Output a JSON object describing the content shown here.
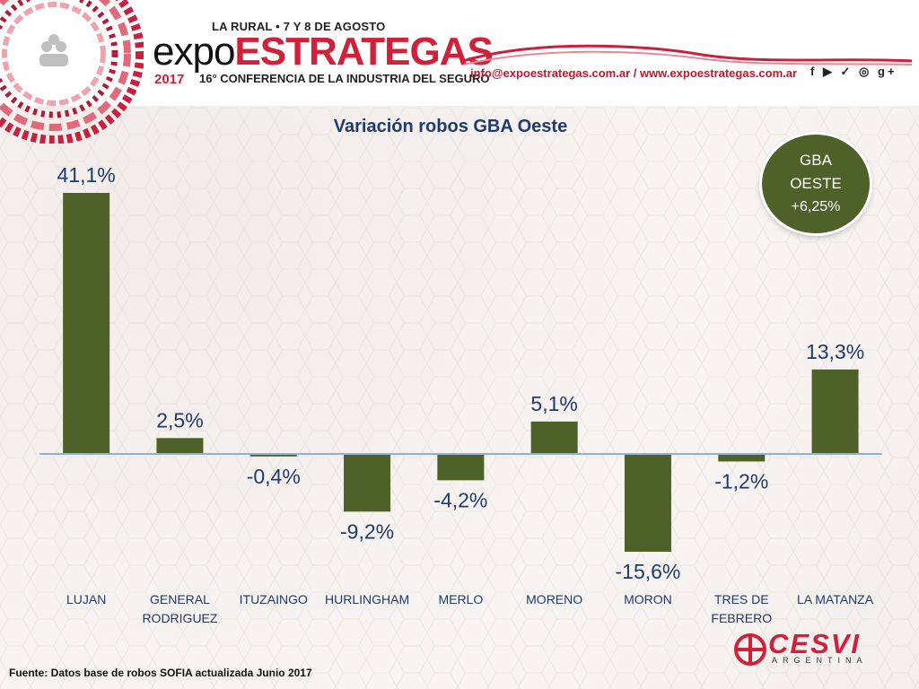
{
  "header": {
    "event_date": "LA RURAL • 7 Y 8 DE AGOSTO",
    "event_name_part1": "expo",
    "event_name_part2": "ESTRATEGAS",
    "event_year": "2017",
    "event_subtitle": "16° CONFERENCIA DE LA INDUSTRIA DEL SEGURO",
    "contact": "info@expoestrategas.com.ar / www.expoestrategas.com.ar",
    "social_icons": [
      "facebook-icon",
      "youtube-icon",
      "twitter-icon",
      "instagram-icon",
      "google-plus-icon"
    ],
    "social_text": "f ▶ ✓ ◎ g+"
  },
  "badge": {
    "line1": "GBA",
    "line2": "OESTE",
    "line3": "+6,25%"
  },
  "chart_data": {
    "type": "bar",
    "title": "Variación robos GBA Oeste",
    "categories": [
      "LUJAN",
      "GENERAL RODRIGUEZ",
      "ITUZAINGO",
      "HURLINGHAM",
      "MERLO",
      "MORENO",
      "MORON",
      "TRES DE FEBRERO",
      "LA MATANZA"
    ],
    "category_lines": [
      [
        "LUJAN"
      ],
      [
        "GENERAL",
        "RODRIGUEZ"
      ],
      [
        "ITUZAINGO"
      ],
      [
        "HURLINGHAM"
      ],
      [
        "MERLO"
      ],
      [
        "MORENO"
      ],
      [
        "MORON"
      ],
      [
        "TRES DE",
        "FEBRERO"
      ],
      [
        "LA MATANZA"
      ]
    ],
    "values": [
      41.1,
      2.5,
      -0.4,
      -9.2,
      -4.2,
      5.1,
      -15.6,
      -1.2,
      13.3
    ],
    "data_labels": [
      "41,1%",
      "2,5%",
      "-0,4%",
      "-9,2%",
      "-4,2%",
      "5,1%",
      "-15,6%",
      "-1,2%",
      "13,3%"
    ],
    "ylim": [
      -15.6,
      41.1
    ],
    "bar_color": "#4d6128",
    "axis_color": "#8fb0d8",
    "label_color": "#1f3a6b",
    "grid": false,
    "legend": "none"
  },
  "footer": {
    "source": "Fuente: Datos base de robos SOFIA actualizada Junio 2017",
    "brand": "CESVI",
    "brand_sub": "ARGENTINA"
  }
}
